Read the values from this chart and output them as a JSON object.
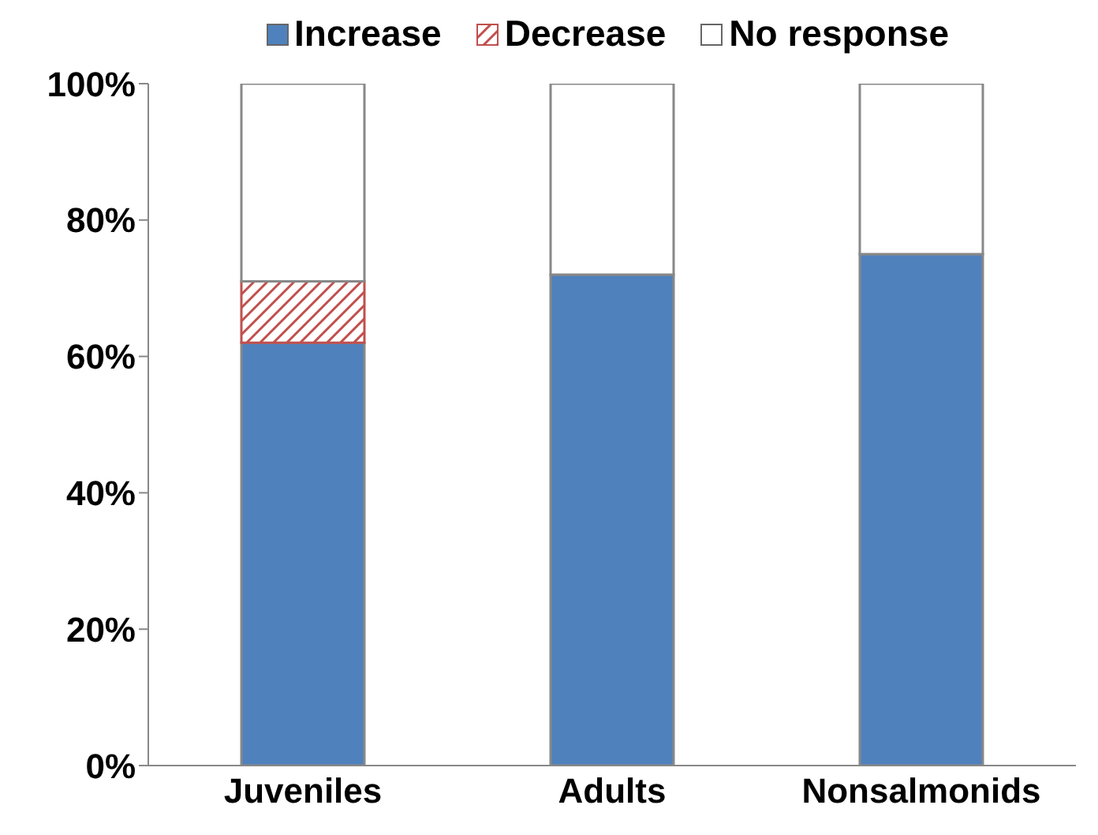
{
  "chart_data": {
    "type": "bar",
    "stacked": true,
    "categories": [
      "Juveniles",
      "Adults",
      "Nonsalmonids"
    ],
    "series": [
      {
        "name": "Increase",
        "color": "#4f81bd",
        "values": [
          62,
          72,
          75
        ]
      },
      {
        "name": "Decrease",
        "color": "#c0504d",
        "values": [
          9,
          0,
          0
        ]
      },
      {
        "name": "No response",
        "color": "#ffffff",
        "values": [
          29,
          28,
          25
        ]
      }
    ],
    "ylim": [
      0,
      100
    ],
    "yticks": [
      {
        "value": 0,
        "label": "0%"
      },
      {
        "value": 20,
        "label": "20%"
      },
      {
        "value": 40,
        "label": "40%"
      },
      {
        "value": 60,
        "label": "60%"
      },
      {
        "value": 80,
        "label": "80%"
      },
      {
        "value": 100,
        "label": "100%"
      }
    ],
    "grid": false,
    "legend": "top"
  }
}
